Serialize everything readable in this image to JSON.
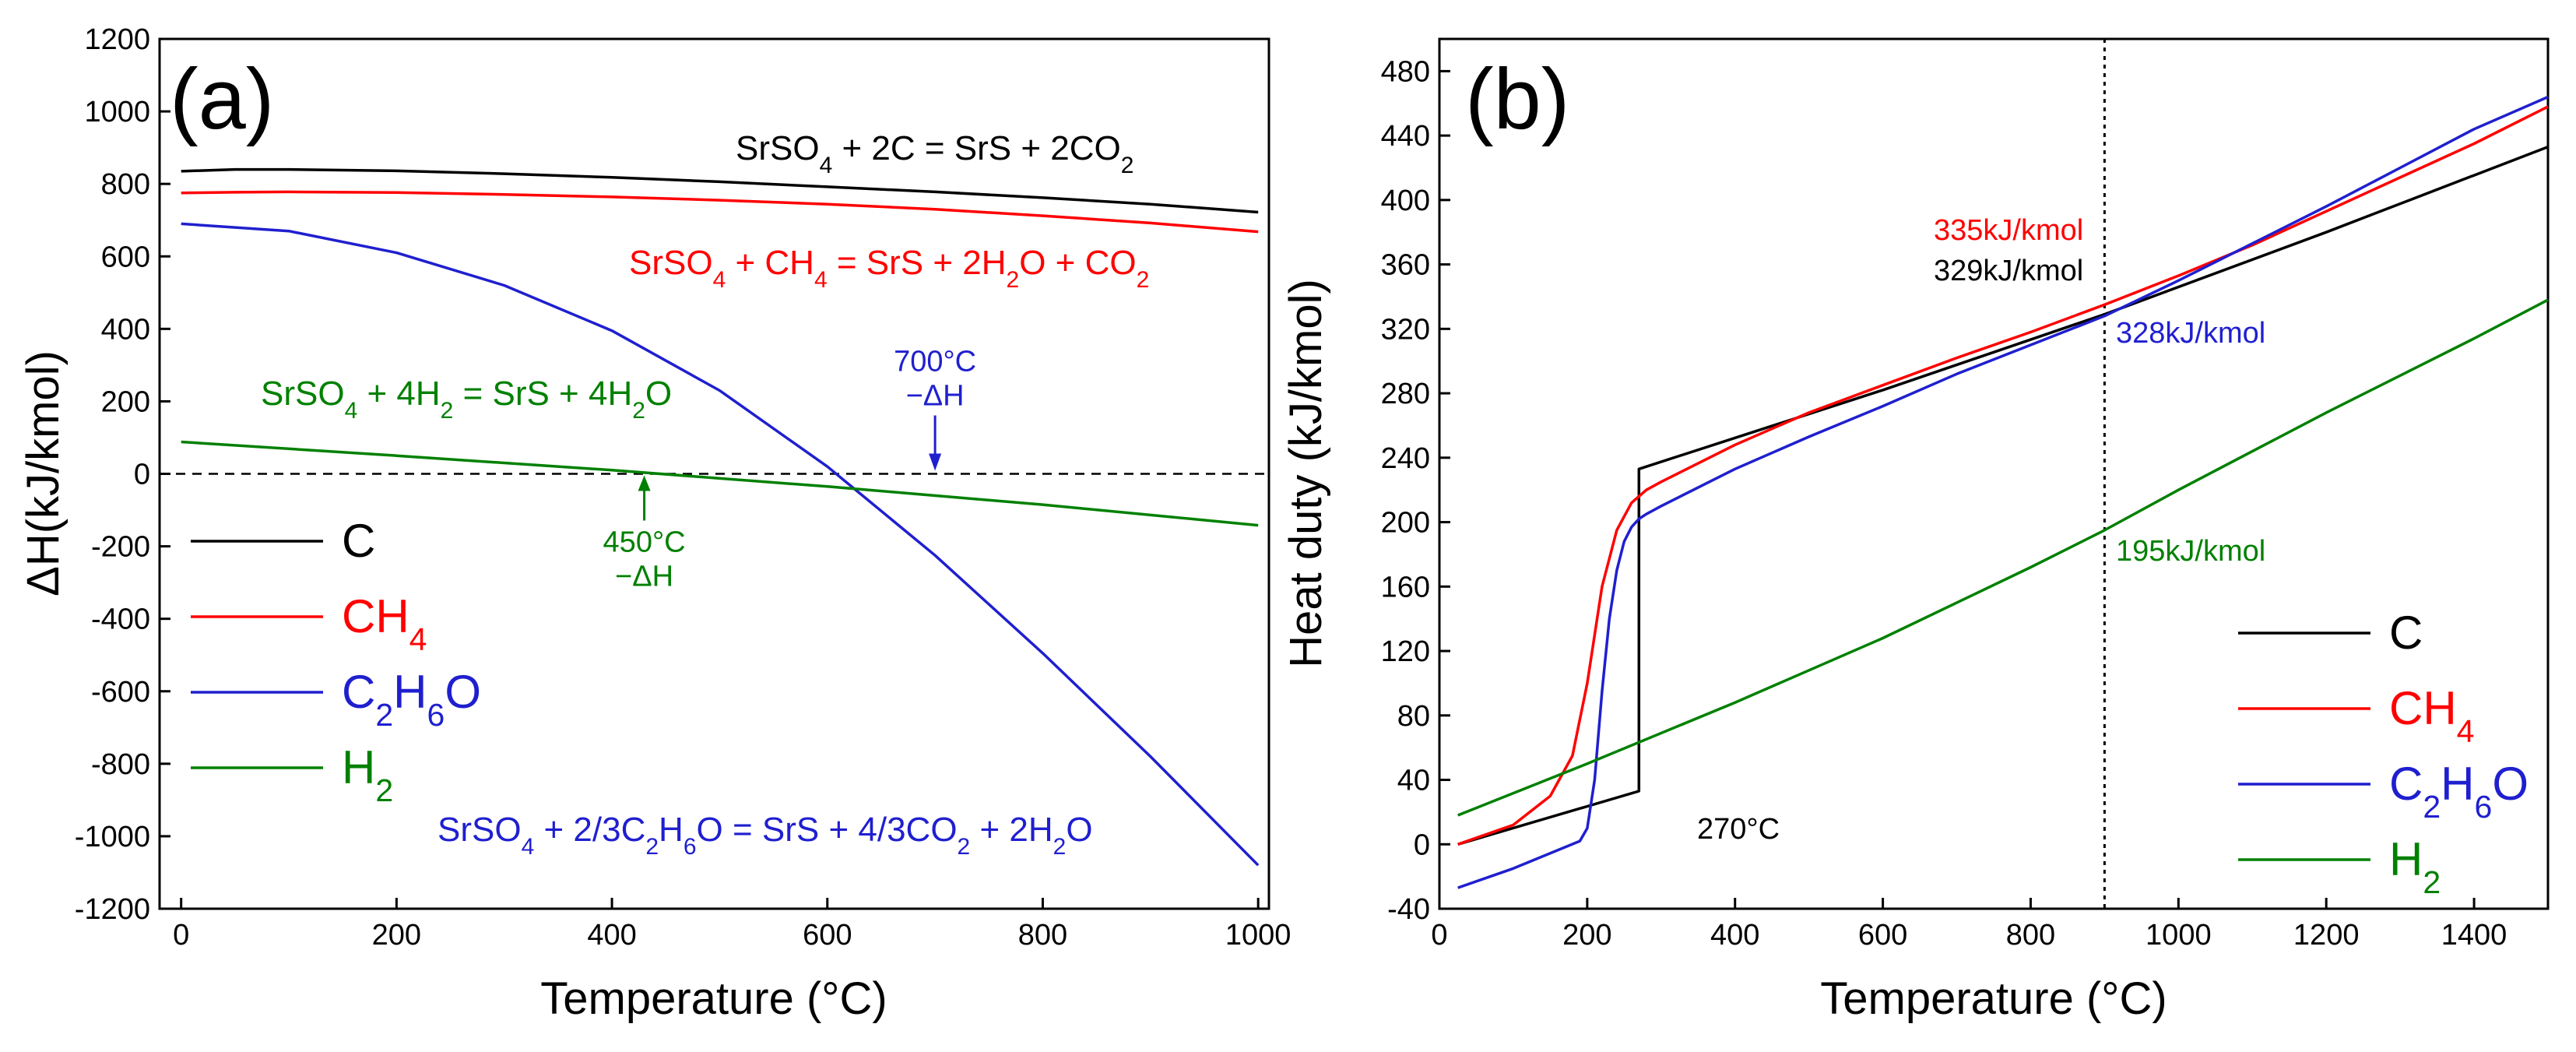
{
  "chart_data": [
    {
      "type": "line",
      "panel": "(a)",
      "xlabel": "Temperature (°C)",
      "ylabel": "ΔH(kJ/kmol)",
      "xlim": [
        -20,
        1010
      ],
      "ylim": [
        -1200,
        1200
      ],
      "xticks": [
        "0",
        "200",
        "400",
        "600",
        "800",
        "1000"
      ],
      "yticks": [
        "-1200",
        "-1000",
        "-800",
        "-600",
        "-400",
        "-200",
        "0",
        "200",
        "400",
        "600",
        "800",
        "1000",
        "1200"
      ],
      "reference_line": {
        "y": 0,
        "style": "dashed"
      },
      "series": [
        {
          "name": "C",
          "name_base": "C",
          "name_sub": "",
          "color": "#000000",
          "x": [
            0,
            50,
            100,
            200,
            300,
            400,
            500,
            600,
            700,
            800,
            900,
            1000
          ],
          "y": [
            835,
            840,
            840,
            836,
            828,
            818,
            806,
            792,
            778,
            762,
            744,
            722
          ],
          "equation": [
            [
              "SrSO",
              "n"
            ],
            [
              "4",
              "s"
            ],
            [
              " + 2C = SrS + 2CO",
              "n"
            ],
            [
              "2",
              "s"
            ]
          ]
        },
        {
          "name": "CH4",
          "name_base": "CH",
          "name_sub": "4",
          "color": "#ff0000",
          "x": [
            0,
            50,
            100,
            200,
            300,
            400,
            500,
            600,
            700,
            800,
            900,
            1000
          ],
          "y": [
            775,
            777,
            778,
            776,
            771,
            764,
            755,
            744,
            730,
            712,
            692,
            668
          ],
          "equation": [
            [
              "SrSO",
              "n"
            ],
            [
              "4",
              "s"
            ],
            [
              " + CH",
              "n"
            ],
            [
              "4",
              "s"
            ],
            [
              " = SrS + 2H",
              "n"
            ],
            [
              "2",
              "s"
            ],
            [
              "O + CO",
              "n"
            ],
            [
              "2",
              "s"
            ]
          ]
        },
        {
          "name": "C2H6O",
          "name_base": "C",
          "name_sub": "2H6O",
          "color": "#1f1fcf",
          "x": [
            0,
            100,
            200,
            300,
            400,
            500,
            600,
            700,
            800,
            900,
            1000
          ],
          "y": [
            690,
            670,
            610,
            520,
            395,
            230,
            20,
            -225,
            -495,
            -780,
            -1080
          ],
          "equation": [
            [
              "SrSO",
              "n"
            ],
            [
              "4",
              "s"
            ],
            [
              " + 2/3C",
              "n"
            ],
            [
              "2",
              "s"
            ],
            [
              "H",
              "n"
            ],
            [
              "6",
              "s"
            ],
            [
              "O = SrS + 4/3CO",
              "n"
            ],
            [
              "2",
              "s"
            ],
            [
              " + 2H",
              "n"
            ],
            [
              "2",
              "s"
            ],
            [
              "O",
              "n"
            ]
          ]
        },
        {
          "name": "H2",
          "name_base": "H",
          "name_sub": "2",
          "color": "#008000",
          "x": [
            0,
            200,
            400,
            600,
            800,
            1000
          ],
          "y": [
            88,
            50,
            10,
            -35,
            -85,
            -142
          ],
          "equation": [
            [
              "SrSO",
              "n"
            ],
            [
              "4",
              "s"
            ],
            [
              " + 4H",
              "n"
            ],
            [
              "2",
              "s"
            ],
            [
              " = SrS + 4H",
              "n"
            ],
            [
              "2",
              "s"
            ],
            [
              "O",
              "n"
            ]
          ]
        }
      ],
      "annotations": [
        {
          "line1": "700°C",
          "line2": "−ΔH",
          "x": 700,
          "y": 0,
          "color": "#1f1fcf",
          "position": "above"
        },
        {
          "line1": "450°C",
          "line2": "−ΔH",
          "x": 430,
          "y": 0,
          "color": "#008000",
          "position": "below"
        }
      ]
    },
    {
      "type": "line",
      "panel": "(b)",
      "xlabel": "Temperature (°C)",
      "ylabel": "Heat duty (kJ/kmol)",
      "xlim": [
        0,
        1500
      ],
      "ylim": [
        -40,
        500
      ],
      "xticks": [
        "0",
        "200",
        "400",
        "600",
        "800",
        "1000",
        "1200",
        "1400"
      ],
      "yticks": [
        "-40",
        "0",
        "40",
        "80",
        "120",
        "160",
        "200",
        "240",
        "280",
        "320",
        "360",
        "400",
        "440",
        "480"
      ],
      "reference_vline": {
        "x": 900,
        "style": "dotted"
      },
      "series": [
        {
          "name": "C",
          "name_base": "C",
          "name_sub": "",
          "color": "#000000",
          "x": [
            25,
            270,
            270,
            600,
            900,
            1200,
            1500
          ],
          "y": [
            0,
            33,
            233,
            282,
            329,
            380,
            433
          ]
        },
        {
          "name": "CH4",
          "name_base": "CH",
          "name_sub": "4",
          "color": "#ff0000",
          "x": [
            25,
            100,
            150,
            180,
            200,
            220,
            240,
            260,
            280,
            300,
            400,
            500,
            600,
            700,
            800,
            900,
            1000,
            1100,
            1200,
            1300,
            1400,
            1500
          ],
          "y": [
            0,
            12,
            30,
            55,
            100,
            160,
            195,
            212,
            220,
            225,
            248,
            268,
            285,
            302,
            318,
            335,
            353,
            372,
            393,
            414,
            435,
            458
          ]
        },
        {
          "name": "C2H6O",
          "name_base": "C",
          "name_sub": "2H6O",
          "color": "#1f1fcf",
          "x": [
            25,
            100,
            190,
            200,
            210,
            220,
            230,
            240,
            250,
            260,
            270,
            280,
            300,
            400,
            500,
            600,
            700,
            800,
            900,
            1000,
            1100,
            1200,
            1300,
            1400,
            1500
          ],
          "y": [
            -27,
            -15,
            2,
            10,
            40,
            95,
            140,
            170,
            188,
            197,
            202,
            205,
            210,
            233,
            253,
            272,
            292,
            310,
            328,
            350,
            373,
            396,
            420,
            444,
            464
          ]
        },
        {
          "name": "H2",
          "name_base": "H",
          "name_sub": "2",
          "color": "#008000",
          "x": [
            25,
            200,
            400,
            600,
            800,
            900,
            1000,
            1200,
            1400,
            1500
          ],
          "y": [
            18,
            50,
            88,
            128,
            172,
            195,
            220,
            268,
            314,
            338
          ]
        }
      ],
      "annotations": [
        {
          "text": "335kJ/kmol",
          "color": "#ff0000"
        },
        {
          "text": "329kJ/kmol",
          "color": "#000000"
        },
        {
          "text": "328kJ/kmol",
          "color": "#1f1fcf"
        },
        {
          "text": "195kJ/kmol",
          "color": "#008000"
        },
        {
          "text": "270°C",
          "color": "#000000"
        }
      ]
    }
  ]
}
